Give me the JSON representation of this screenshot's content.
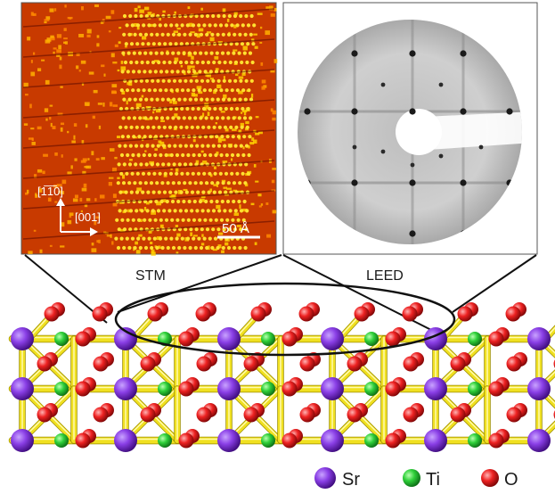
{
  "stm": {
    "direction_y": "[1̅1̅0]",
    "direction_x": "[001]",
    "scale_bar": "50 Å",
    "label": "STM"
  },
  "leed": {
    "label": "LEED"
  },
  "legend": {
    "items": [
      {
        "symbol": "Sr",
        "color": "#7b2fd0"
      },
      {
        "symbol": "Ti",
        "color": "#1fbf2a"
      },
      {
        "symbol": "O",
        "color": "#e01a1a"
      }
    ]
  }
}
